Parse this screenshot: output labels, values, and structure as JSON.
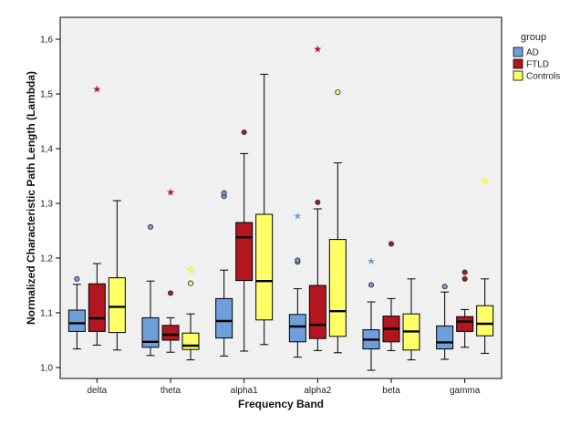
{
  "chart_data": {
    "type": "boxplot",
    "title": "",
    "xlabel": "Frequency Band",
    "ylabel": "Normalized Characteristic Path Length (Lambda)",
    "ylim": [
      0.98,
      1.64
    ],
    "yticks": [
      "1,0",
      "1,1",
      "1,2",
      "1,3",
      "1,4",
      "1,5",
      "1,6"
    ],
    "ytick_values": [
      1.0,
      1.1,
      1.2,
      1.3,
      1.4,
      1.5,
      1.6
    ],
    "categories": [
      "delta",
      "theta",
      "alpha1",
      "alpha2",
      "beta",
      "gamma"
    ],
    "legend": {
      "title": "group",
      "position": "top-right"
    },
    "series": [
      {
        "name": "AD",
        "color": "#6f9fd8",
        "boxes": [
          {
            "whisker_low": 1.034,
            "q1": 1.066,
            "median": 1.081,
            "q3": 1.105,
            "whisker_high": 1.152,
            "outliers": [
              {
                "value": 1.162,
                "kind": "circle"
              }
            ]
          },
          {
            "whisker_low": 1.022,
            "q1": 1.037,
            "median": 1.047,
            "q3": 1.091,
            "whisker_high": 1.158,
            "outliers": [
              {
                "value": 1.257,
                "kind": "circle"
              }
            ]
          },
          {
            "whisker_low": 1.021,
            "q1": 1.054,
            "median": 1.085,
            "q3": 1.126,
            "whisker_high": 1.178,
            "outliers": [
              {
                "value": 1.313,
                "kind": "circle"
              },
              {
                "value": 1.319,
                "kind": "circle"
              }
            ]
          },
          {
            "whisker_low": 1.019,
            "q1": 1.047,
            "median": 1.075,
            "q3": 1.097,
            "whisker_high": 1.144,
            "outliers": [
              {
                "value": 1.193,
                "kind": "circle"
              },
              {
                "value": 1.196,
                "kind": "circle"
              },
              {
                "value": 1.277,
                "kind": "star"
              }
            ]
          },
          {
            "whisker_low": 0.995,
            "q1": 1.034,
            "median": 1.051,
            "q3": 1.069,
            "whisker_high": 1.12,
            "outliers": [
              {
                "value": 1.151,
                "kind": "circle"
              },
              {
                "value": 1.194,
                "kind": "star"
              }
            ]
          },
          {
            "whisker_low": 1.015,
            "q1": 1.034,
            "median": 1.046,
            "q3": 1.076,
            "whisker_high": 1.138,
            "outliers": [
              {
                "value": 1.148,
                "kind": "circle"
              }
            ]
          }
        ]
      },
      {
        "name": "FTLD",
        "color": "#b2161f",
        "boxes": [
          {
            "whisker_low": 1.041,
            "q1": 1.066,
            "median": 1.09,
            "q3": 1.153,
            "whisker_high": 1.19,
            "outliers": [
              {
                "value": 1.508,
                "kind": "star"
              }
            ]
          },
          {
            "whisker_low": 1.028,
            "q1": 1.05,
            "median": 1.06,
            "q3": 1.077,
            "whisker_high": 1.091,
            "outliers": [
              {
                "value": 1.136,
                "kind": "circle"
              },
              {
                "value": 1.32,
                "kind": "star"
              }
            ]
          },
          {
            "whisker_low": 1.03,
            "q1": 1.159,
            "median": 1.238,
            "q3": 1.265,
            "whisker_high": 1.391,
            "outliers": [
              {
                "value": 1.43,
                "kind": "circle"
              }
            ]
          },
          {
            "whisker_low": 1.031,
            "q1": 1.053,
            "median": 1.078,
            "q3": 1.15,
            "whisker_high": 1.29,
            "outliers": [
              {
                "value": 1.302,
                "kind": "circle"
              },
              {
                "value": 1.582,
                "kind": "star"
              }
            ]
          },
          {
            "whisker_low": 1.031,
            "q1": 1.047,
            "median": 1.071,
            "q3": 1.094,
            "whisker_high": 1.126,
            "outliers": [
              {
                "value": 1.226,
                "kind": "circle"
              }
            ]
          },
          {
            "whisker_low": 1.037,
            "q1": 1.066,
            "median": 1.084,
            "q3": 1.093,
            "whisker_high": 1.106,
            "outliers": [
              {
                "value": 1.162,
                "kind": "circle"
              },
              {
                "value": 1.174,
                "kind": "circle"
              }
            ]
          }
        ]
      },
      {
        "name": "Controls",
        "color": "#ffff66",
        "boxes": [
          {
            "whisker_low": 1.032,
            "q1": 1.064,
            "median": 1.111,
            "q3": 1.164,
            "whisker_high": 1.305,
            "outliers": []
          },
          {
            "whisker_low": 1.014,
            "q1": 1.033,
            "median": 1.04,
            "q3": 1.063,
            "whisker_high": 1.098,
            "outliers": [
              {
                "value": 1.154,
                "kind": "circle"
              },
              {
                "value": 1.178,
                "kind": "star"
              }
            ]
          },
          {
            "whisker_low": 1.042,
            "q1": 1.087,
            "median": 1.158,
            "q3": 1.28,
            "whisker_high": 1.536,
            "outliers": []
          },
          {
            "whisker_low": 1.027,
            "q1": 1.057,
            "median": 1.103,
            "q3": 1.234,
            "whisker_high": 1.374,
            "outliers": [
              {
                "value": 1.503,
                "kind": "circle"
              }
            ]
          },
          {
            "whisker_low": 1.014,
            "q1": 1.032,
            "median": 1.066,
            "q3": 1.098,
            "whisker_high": 1.162,
            "outliers": []
          },
          {
            "whisker_low": 1.026,
            "q1": 1.058,
            "median": 1.08,
            "q3": 1.113,
            "whisker_high": 1.162,
            "outliers": [
              {
                "value": 1.341,
                "kind": "star"
              }
            ]
          }
        ]
      }
    ]
  }
}
